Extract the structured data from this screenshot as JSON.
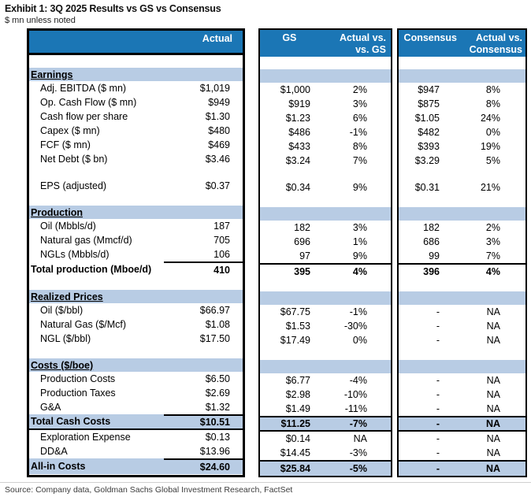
{
  "title": "Exhibit 1: 3Q 2025 Results vs GS vs Consensus",
  "subtitle": "$ mn unless noted",
  "source": "Source: Company data, Goldman Sachs Global Investment Research, FactSet",
  "colors": {
    "header_bg": "#1B76B5",
    "band_bg": "#B8CCE4",
    "header_text": "#FFFFFF",
    "body_text": "#000000",
    "source_text": "#3C3C3C"
  },
  "header": {
    "actual_label": "Actual",
    "gs_label": "GS",
    "actual_vs_gs_line1": "Actual vs.",
    "actual_vs_gs_line2": "vs. GS",
    "consensus_label": "Consensus",
    "actual_vs_consensus_line1": "Actual vs.",
    "actual_vs_consensus_line2": "Consensus"
  },
  "rows": [
    {
      "kind": "spacer"
    },
    {
      "kind": "section",
      "label": "Earnings"
    },
    {
      "kind": "data",
      "label": "Adj. EBITDA ($ mn)",
      "actual": "$1,019",
      "gs": "$1,000",
      "vs_gs": "2%",
      "consensus": "$947",
      "vs_consensus": "8%"
    },
    {
      "kind": "data",
      "label": "Op. Cash Flow ($ mn)",
      "actual": "$949",
      "gs": "$919",
      "vs_gs": "3%",
      "consensus": "$875",
      "vs_consensus": "8%"
    },
    {
      "kind": "data",
      "label": "Cash flow per share",
      "actual": "$1.30",
      "gs": "$1.23",
      "vs_gs": "6%",
      "consensus": "$1.05",
      "vs_consensus": "24%"
    },
    {
      "kind": "data",
      "label": "Capex ($ mn)",
      "actual": "$480",
      "gs": "$486",
      "vs_gs": "-1%",
      "consensus": "$482",
      "vs_consensus": "0%"
    },
    {
      "kind": "data",
      "label": "FCF ($ mn)",
      "actual": "$469",
      "gs": "$433",
      "vs_gs": "8%",
      "consensus": "$393",
      "vs_consensus": "19%"
    },
    {
      "kind": "data",
      "label": "Net Debt ($ bn)",
      "actual": "$3.46",
      "gs": "$3.24",
      "vs_gs": "7%",
      "consensus": "$3.29",
      "vs_consensus": "5%"
    },
    {
      "kind": "spacer"
    },
    {
      "kind": "data",
      "label": "EPS (adjusted)",
      "actual": "$0.37",
      "gs": "$0.34",
      "vs_gs": "9%",
      "consensus": "$0.31",
      "vs_consensus": "21%"
    },
    {
      "kind": "spacer"
    },
    {
      "kind": "section",
      "label": "Production"
    },
    {
      "kind": "data",
      "label": "Oil (Mbbls/d)",
      "actual": "187",
      "gs": "182",
      "vs_gs": "3%",
      "consensus": "182",
      "vs_consensus": "2%"
    },
    {
      "kind": "data",
      "label": "Natural gas (Mmcf/d)",
      "actual": "705",
      "gs": "696",
      "vs_gs": "1%",
      "consensus": "686",
      "vs_consensus": "3%"
    },
    {
      "kind": "data",
      "label": "NGLs (Mbbls/d)",
      "actual": "106",
      "gs": "97",
      "vs_gs": "9%",
      "consensus": "99",
      "vs_consensus": "7%"
    },
    {
      "kind": "total",
      "label": "Total production (Mboe/d)",
      "actual": "410",
      "gs": "395",
      "vs_gs": "4%",
      "consensus": "396",
      "vs_consensus": "4%",
      "highlight": false,
      "bottom_border": false
    },
    {
      "kind": "spacer"
    },
    {
      "kind": "section",
      "label": "Realized Prices"
    },
    {
      "kind": "data",
      "label": "Oil ($/bbl)",
      "actual": "$66.97",
      "gs": "$67.75",
      "vs_gs": "-1%",
      "consensus": "-",
      "vs_consensus": "NA"
    },
    {
      "kind": "data",
      "label": "Natural Gas ($/Mcf)",
      "actual": "$1.08",
      "gs": "$1.53",
      "vs_gs": "-30%",
      "consensus": "-",
      "vs_consensus": "NA"
    },
    {
      "kind": "data",
      "label": "NGL ($/bbl)",
      "actual": "$17.50",
      "gs": "$17.49",
      "vs_gs": "0%",
      "consensus": "-",
      "vs_consensus": "NA"
    },
    {
      "kind": "spacer"
    },
    {
      "kind": "section",
      "label": "Costs ($/boe)"
    },
    {
      "kind": "data",
      "label": "Production Costs",
      "actual": "$6.50",
      "gs": "$6.77",
      "vs_gs": "-4%",
      "consensus": "-",
      "vs_consensus": "NA"
    },
    {
      "kind": "data",
      "label": "Production Taxes",
      "actual": "$2.69",
      "gs": "$2.98",
      "vs_gs": "-10%",
      "consensus": "-",
      "vs_consensus": "NA"
    },
    {
      "kind": "data",
      "label": "G&A",
      "actual": "$1.32",
      "gs": "$1.49",
      "vs_gs": "-11%",
      "consensus": "-",
      "vs_consensus": "NA"
    },
    {
      "kind": "total",
      "label": "Total Cash Costs",
      "actual": "$10.51",
      "gs": "$11.25",
      "vs_gs": "-7%",
      "consensus": "-",
      "vs_consensus": "NA",
      "highlight": true,
      "bottom_border": true
    },
    {
      "kind": "data",
      "label": "Exploration Expense",
      "actual": "$0.13",
      "gs": "$0.14",
      "vs_gs": "NA",
      "consensus": "-",
      "vs_consensus": "NA"
    },
    {
      "kind": "data",
      "label": "DD&A",
      "actual": "$13.96",
      "gs": "$14.45",
      "vs_gs": "-3%",
      "consensus": "-",
      "vs_consensus": "NA"
    },
    {
      "kind": "total",
      "label": "All-in Costs",
      "actual": "$24.60",
      "gs": "$25.84",
      "vs_gs": "-5%",
      "consensus": "-",
      "vs_consensus": "NA",
      "highlight": true,
      "bottom_border": false
    }
  ]
}
